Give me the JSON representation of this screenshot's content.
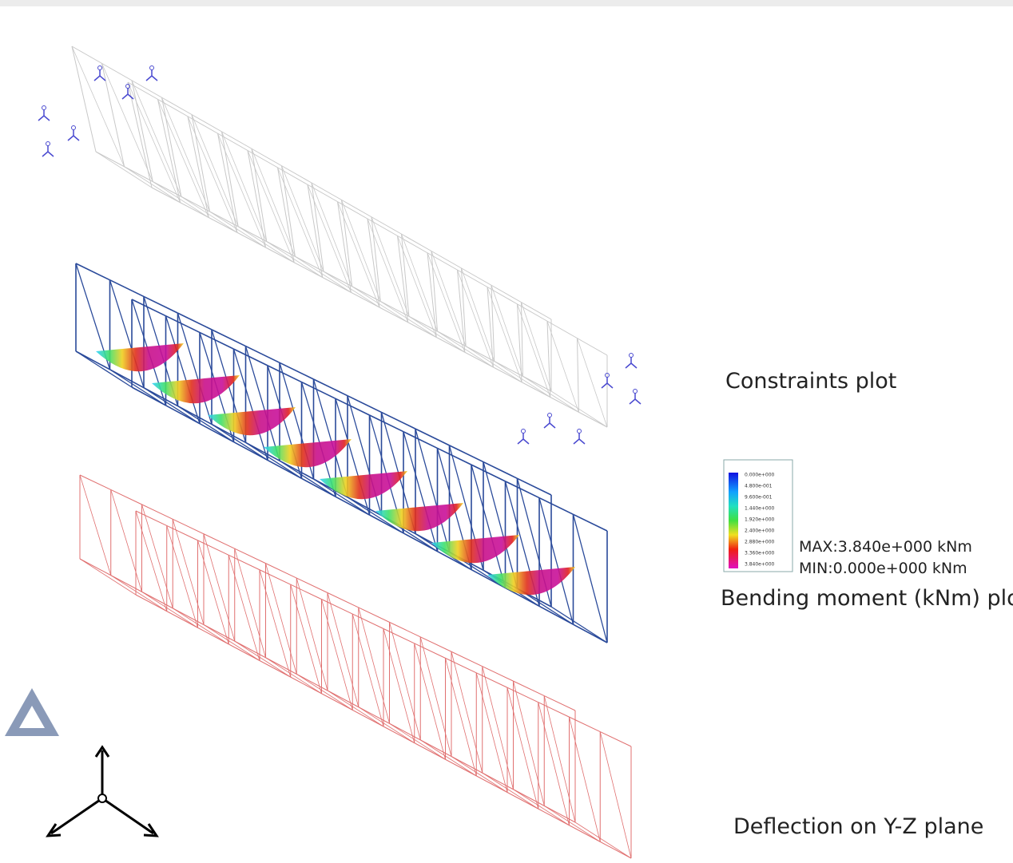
{
  "labels": {
    "constraints": "Constraints plot",
    "bending": "Bending moment (kNm) plot",
    "deflection": "Deflection on Y-Z plane"
  },
  "legend": {
    "ticks": [
      "0.000e+000",
      "4.800e-001",
      "9.600e-001",
      "1.440e+000",
      "1.920e+000",
      "2.400e+000",
      "2.880e+000",
      "3.360e+000",
      "3.840e+000"
    ],
    "max": "MAX:3.840e+000 kNm",
    "min": "MIN:0.000e+000 kNm"
  }
}
